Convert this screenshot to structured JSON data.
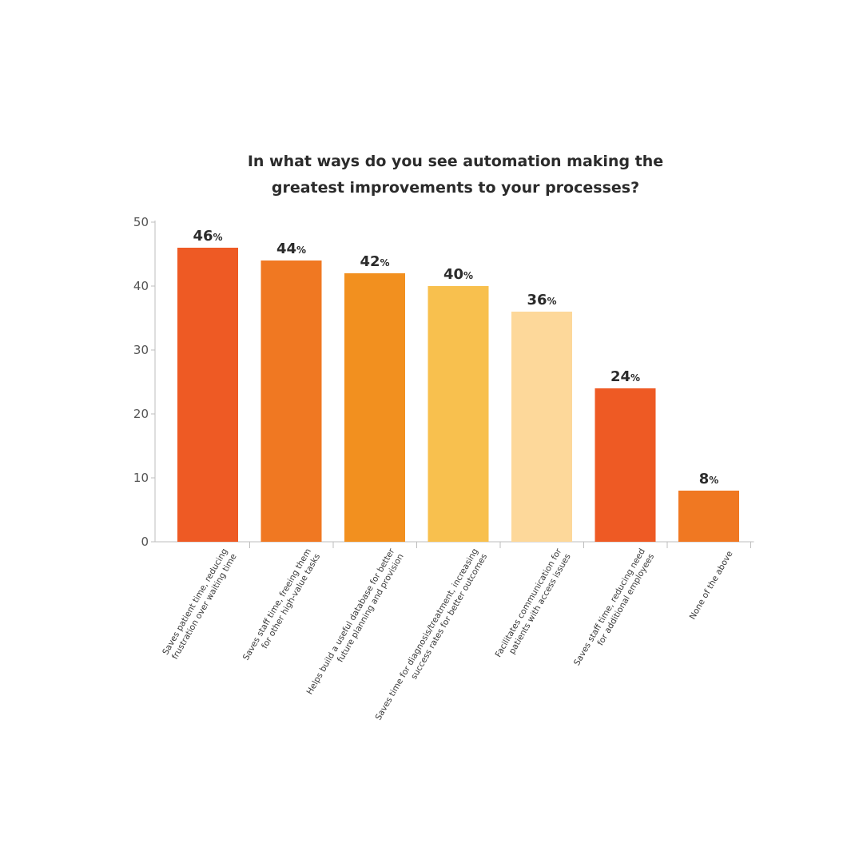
{
  "chart_data": {
    "type": "bar",
    "title_lines": [
      "In what ways do you see automation making the",
      "greatest improvements to your processes?"
    ],
    "categories": [
      [
        "Saves patient time, reducing",
        "frustration over waiting time"
      ],
      [
        "Saves staff time, freeing them",
        "for other high-value tasks"
      ],
      [
        "Helps build a useful database for better",
        "future planning and provision"
      ],
      [
        "Saves time for diagnosis/treatment, increasing",
        "success rates for better outcomes"
      ],
      [
        "Facilitates communication for",
        "patients with access issues"
      ],
      [
        "Saves staff time, reducing need",
        "for additional employees"
      ],
      [
        "None of the above"
      ]
    ],
    "values": [
      46,
      44,
      42,
      40,
      36,
      24,
      8
    ],
    "value_unit": "%",
    "bar_colors": [
      "#EE5A24",
      "#F07822",
      "#F2901F",
      "#F8C04E",
      "#FDD89A",
      "#EE5A24",
      "#F07822"
    ],
    "ylim": [
      0,
      50
    ],
    "yticks": [
      0,
      10,
      20,
      30,
      40,
      50
    ],
    "grid": false,
    "xlabel": "",
    "ylabel": ""
  }
}
